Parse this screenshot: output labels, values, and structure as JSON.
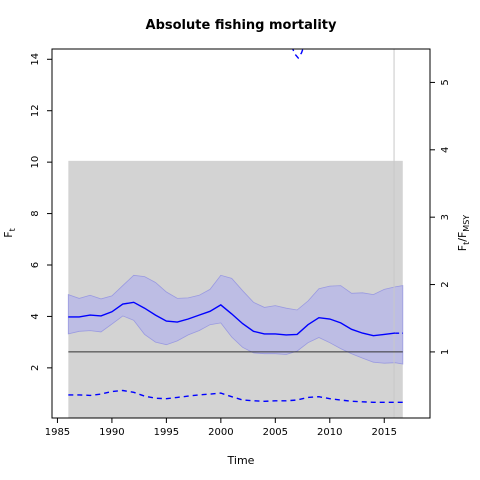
{
  "chart_data": {
    "type": "line",
    "title": "Absolute fishing mortality",
    "xlabel": "Time",
    "ylabel": {
      "main": "F",
      "sub": "t"
    },
    "y2label": {
      "f": "F",
      "t": "t",
      "slash": "/",
      "f2": "F",
      "msy": "MSY"
    },
    "xlim": [
      1984.5,
      2019.2
    ],
    "ylim": [
      0.05,
      14.4
    ],
    "x_ticks": [
      1985,
      1990,
      1995,
      2000,
      2005,
      2010,
      2015
    ],
    "y_ticks": [
      2,
      4,
      6,
      8,
      10,
      12,
      14
    ],
    "y2_ticks": [
      1,
      2,
      3,
      4,
      5
    ],
    "fmsy": 2.62,
    "shaded_region": {
      "x": [
        1986,
        2016.7
      ],
      "y": [
        0.05,
        10.05
      ],
      "color": "#d3d3d3"
    },
    "vline_x": 2015.9,
    "colors": {
      "line": "#0000ff",
      "band": "#b8b8e6",
      "hline": "#333333",
      "vline": "#c8c8c8"
    },
    "series": [
      {
        "role": "estimate",
        "x": [
          1986,
          1987,
          1988,
          1989,
          1990,
          1991,
          1992,
          1993,
          1994,
          1995,
          1996,
          1997,
          1998,
          1999,
          2000,
          2001,
          2002,
          2003,
          2004,
          2005,
          2006,
          2007,
          2008,
          2009,
          2010,
          2011,
          2012,
          2013,
          2014,
          2015,
          2016
        ],
        "y": [
          3.98,
          3.98,
          4.05,
          4.02,
          4.18,
          4.48,
          4.55,
          4.32,
          4.05,
          3.82,
          3.78,
          3.9,
          4.05,
          4.2,
          4.45,
          4.1,
          3.72,
          3.42,
          3.32,
          3.32,
          3.28,
          3.3,
          3.68,
          3.95,
          3.9,
          3.75,
          3.5,
          3.35,
          3.25,
          3.3,
          3.35
        ]
      },
      {
        "role": "upper",
        "x": [
          1986,
          1987,
          1988,
          1989,
          1990,
          1991,
          1992,
          1993,
          1994,
          1995,
          1996,
          1997,
          1998,
          1999,
          2000,
          2001,
          2002,
          2003,
          2004,
          2005,
          2006,
          2007,
          2008,
          2009,
          2010,
          2011,
          2012,
          2013,
          2014,
          2015,
          2016,
          2016.7
        ],
        "y": [
          4.85,
          4.7,
          4.82,
          4.68,
          4.8,
          5.2,
          5.6,
          5.55,
          5.32,
          4.95,
          4.7,
          4.72,
          4.82,
          5.05,
          5.6,
          5.48,
          5.0,
          4.55,
          4.35,
          4.42,
          4.32,
          4.25,
          4.6,
          5.08,
          5.18,
          5.2,
          4.9,
          4.92,
          4.85,
          5.05,
          5.15,
          5.2
        ]
      },
      {
        "role": "lower",
        "x": [
          1986,
          1987,
          1988,
          1989,
          1990,
          1991,
          1992,
          1993,
          1994,
          1995,
          1996,
          1997,
          1998,
          1999,
          2000,
          2001,
          2002,
          2003,
          2004,
          2005,
          2006,
          2007,
          2008,
          2009,
          2010,
          2011,
          2012,
          2013,
          2014,
          2015,
          2016,
          2016.7
        ],
        "y": [
          3.32,
          3.42,
          3.45,
          3.4,
          3.7,
          4.02,
          3.85,
          3.3,
          3.0,
          2.9,
          3.05,
          3.28,
          3.45,
          3.68,
          3.75,
          3.2,
          2.8,
          2.58,
          2.55,
          2.55,
          2.52,
          2.65,
          2.98,
          3.18,
          2.98,
          2.75,
          2.55,
          2.38,
          2.22,
          2.18,
          2.2,
          2.15
        ]
      },
      {
        "role": "lower_dashed",
        "x": [
          1986,
          1987,
          1988,
          1989,
          1990,
          1991,
          1992,
          1993,
          1994,
          1995,
          1996,
          1997,
          1998,
          1999,
          2000,
          2001,
          2002,
          2003,
          2004,
          2005,
          2006,
          2007,
          2008,
          2009,
          2010,
          2011,
          2012,
          2013,
          2014,
          2015,
          2016,
          2016.7
        ],
        "y": [
          0.95,
          0.95,
          0.93,
          0.98,
          1.08,
          1.12,
          1.05,
          0.9,
          0.82,
          0.8,
          0.85,
          0.9,
          0.95,
          0.98,
          1.02,
          0.88,
          0.75,
          0.72,
          0.7,
          0.72,
          0.72,
          0.75,
          0.85,
          0.88,
          0.8,
          0.75,
          0.7,
          0.68,
          0.66,
          0.66,
          0.66,
          0.66
        ]
      },
      {
        "role": "upper_dashed",
        "x": [
          2006.5,
          2006.8,
          2007.1,
          2007.4,
          2007.7
        ],
        "y": [
          14.5,
          14.2,
          14.05,
          14.25,
          14.6
        ]
      }
    ]
  }
}
